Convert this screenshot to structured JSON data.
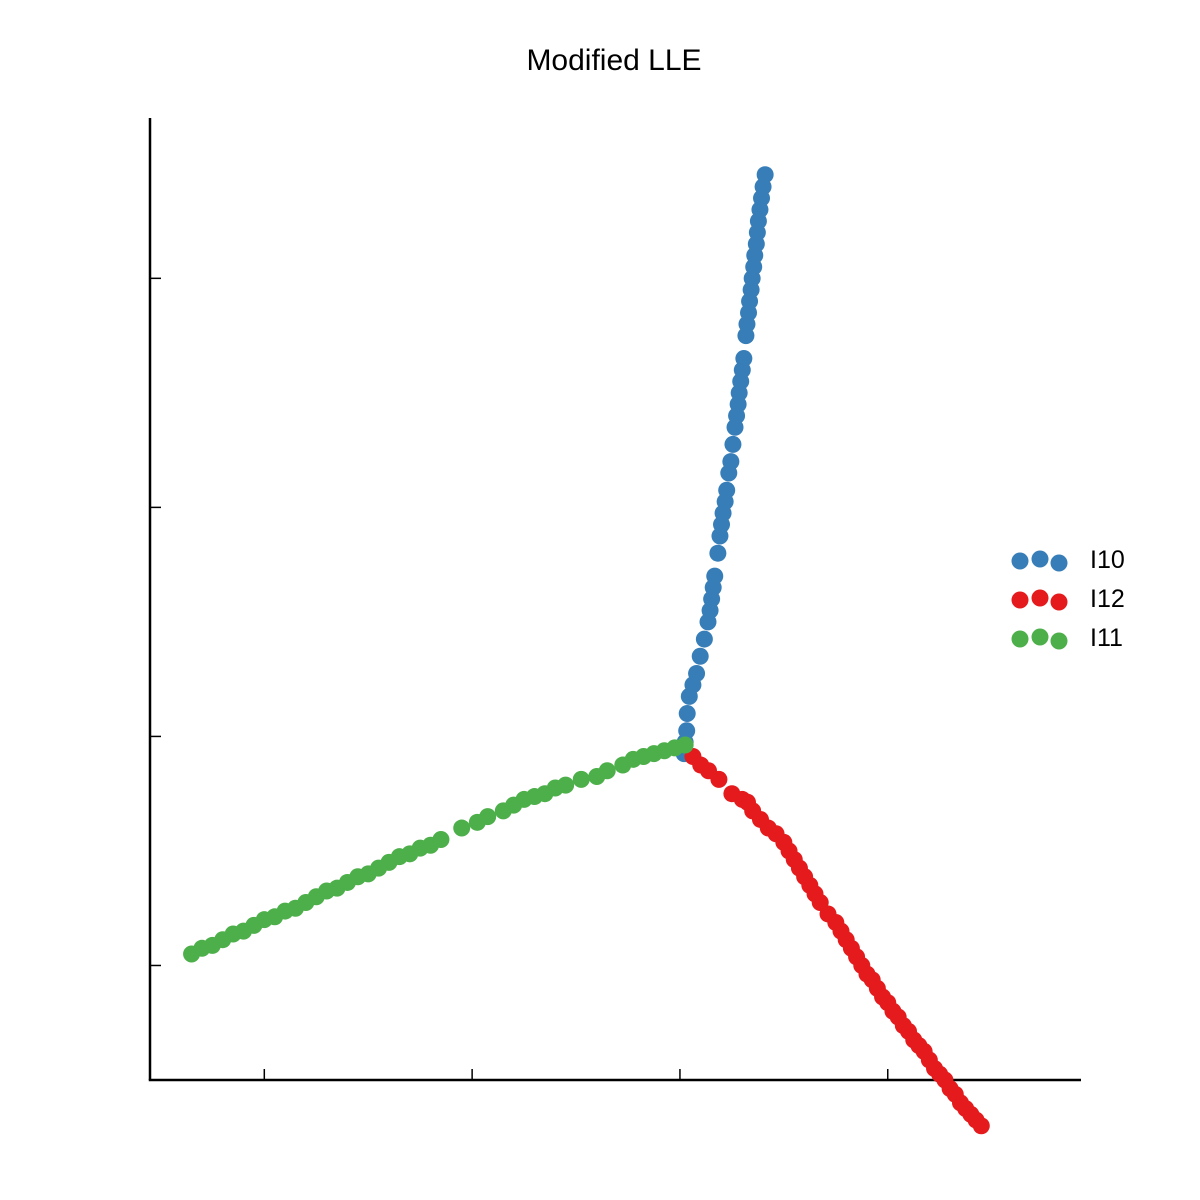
{
  "chart_data": {
    "type": "scatter",
    "title": "Modified LLE",
    "xlabel": "",
    "ylabel": "",
    "xlim": [
      -0.72,
      1.07
    ],
    "ylim": [
      -0.8,
      0.88
    ],
    "xticks": [
      -0.5,
      -0.1,
      0.3,
      0.7
    ],
    "yticks": [
      -0.6,
      -0.2,
      0.2,
      0.6
    ],
    "show_tick_labels": false,
    "grid": false,
    "legend_position": "right",
    "series": [
      {
        "name": "I10",
        "color": "#377eb8",
        "points": [
          [
            0.464,
            0.781
          ],
          [
            0.46,
            0.76
          ],
          [
            0.457,
            0.74
          ],
          [
            0.454,
            0.72
          ],
          [
            0.451,
            0.7
          ],
          [
            0.449,
            0.68
          ],
          [
            0.447,
            0.66
          ],
          [
            0.444,
            0.64
          ],
          [
            0.442,
            0.62
          ],
          [
            0.439,
            0.6
          ],
          [
            0.437,
            0.58
          ],
          [
            0.434,
            0.56
          ],
          [
            0.432,
            0.54
          ],
          [
            0.429,
            0.52
          ],
          [
            0.427,
            0.5
          ],
          [
            0.423,
            0.46
          ],
          [
            0.42,
            0.44
          ],
          [
            0.417,
            0.42
          ],
          [
            0.414,
            0.4
          ],
          [
            0.412,
            0.38
          ],
          [
            0.409,
            0.36
          ],
          [
            0.406,
            0.34
          ],
          [
            0.402,
            0.31
          ],
          [
            0.398,
            0.28
          ],
          [
            0.394,
            0.26
          ],
          [
            0.39,
            0.23
          ],
          [
            0.387,
            0.21
          ],
          [
            0.383,
            0.19
          ],
          [
            0.38,
            0.17
          ],
          [
            0.377,
            0.15
          ],
          [
            0.373,
            0.12
          ],
          [
            0.367,
            0.08
          ],
          [
            0.364,
            0.06
          ],
          [
            0.361,
            0.04
          ],
          [
            0.358,
            0.02
          ],
          [
            0.354,
            0.0
          ],
          [
            0.347,
            -0.03
          ],
          [
            0.339,
            -0.06
          ],
          [
            0.332,
            -0.09
          ],
          [
            0.325,
            -0.11
          ],
          [
            0.318,
            -0.13
          ],
          [
            0.314,
            -0.16
          ],
          [
            0.313,
            -0.19
          ],
          [
            0.31,
            -0.21
          ],
          [
            0.308,
            -0.23
          ]
        ]
      },
      {
        "name": "I12",
        "color": "#e41a1c",
        "points": [
          [
            0.325,
            -0.235
          ],
          [
            0.34,
            -0.25
          ],
          [
            0.355,
            -0.26
          ],
          [
            0.375,
            -0.275
          ],
          [
            0.4,
            -0.3
          ],
          [
            0.42,
            -0.31
          ],
          [
            0.43,
            -0.315
          ],
          [
            0.44,
            -0.33
          ],
          [
            0.455,
            -0.345
          ],
          [
            0.47,
            -0.36
          ],
          [
            0.485,
            -0.37
          ],
          [
            0.5,
            -0.385
          ],
          [
            0.51,
            -0.4
          ],
          [
            0.52,
            -0.415
          ],
          [
            0.53,
            -0.43
          ],
          [
            0.54,
            -0.445
          ],
          [
            0.55,
            -0.46
          ],
          [
            0.56,
            -0.475
          ],
          [
            0.57,
            -0.49
          ],
          [
            0.585,
            -0.51
          ],
          [
            0.6,
            -0.525
          ],
          [
            0.61,
            -0.54
          ],
          [
            0.62,
            -0.555
          ],
          [
            0.63,
            -0.57
          ],
          [
            0.64,
            -0.585
          ],
          [
            0.65,
            -0.6
          ],
          [
            0.66,
            -0.615
          ],
          [
            0.67,
            -0.625
          ],
          [
            0.68,
            -0.64
          ],
          [
            0.69,
            -0.655
          ],
          [
            0.7,
            -0.665
          ],
          [
            0.71,
            -0.68
          ],
          [
            0.72,
            -0.69
          ],
          [
            0.73,
            -0.705
          ],
          [
            0.74,
            -0.715
          ],
          [
            0.75,
            -0.73
          ],
          [
            0.76,
            -0.74
          ],
          [
            0.77,
            -0.75
          ],
          [
            0.78,
            -0.765
          ],
          [
            0.79,
            -0.78
          ],
          [
            0.8,
            -0.79
          ],
          [
            0.81,
            -0.8
          ],
          [
            0.82,
            -0.815
          ],
          [
            0.83,
            -0.825
          ],
          [
            0.84,
            -0.84
          ],
          [
            0.85,
            -0.85
          ],
          [
            0.86,
            -0.86
          ],
          [
            0.87,
            -0.87
          ],
          [
            0.88,
            -0.88
          ]
        ]
      },
      {
        "name": "I11",
        "color": "#4daf4a",
        "points": [
          [
            -0.64,
            -0.58
          ],
          [
            -0.62,
            -0.57
          ],
          [
            -0.6,
            -0.565
          ],
          [
            -0.58,
            -0.555
          ],
          [
            -0.56,
            -0.545
          ],
          [
            -0.54,
            -0.54
          ],
          [
            -0.52,
            -0.53
          ],
          [
            -0.5,
            -0.52
          ],
          [
            -0.48,
            -0.515
          ],
          [
            -0.46,
            -0.505
          ],
          [
            -0.44,
            -0.5
          ],
          [
            -0.42,
            -0.49
          ],
          [
            -0.4,
            -0.48
          ],
          [
            -0.38,
            -0.47
          ],
          [
            -0.36,
            -0.465
          ],
          [
            -0.34,
            -0.455
          ],
          [
            -0.32,
            -0.445
          ],
          [
            -0.3,
            -0.44
          ],
          [
            -0.28,
            -0.43
          ],
          [
            -0.26,
            -0.42
          ],
          [
            -0.24,
            -0.41
          ],
          [
            -0.22,
            -0.405
          ],
          [
            -0.2,
            -0.395
          ],
          [
            -0.18,
            -0.39
          ],
          [
            -0.16,
            -0.38
          ],
          [
            -0.12,
            -0.36
          ],
          [
            -0.09,
            -0.35
          ],
          [
            -0.07,
            -0.34
          ],
          [
            -0.04,
            -0.33
          ],
          [
            -0.02,
            -0.32
          ],
          [
            0.0,
            -0.31
          ],
          [
            0.02,
            -0.305
          ],
          [
            0.04,
            -0.3
          ],
          [
            0.06,
            -0.29
          ],
          [
            0.08,
            -0.285
          ],
          [
            0.11,
            -0.275
          ],
          [
            0.14,
            -0.27
          ],
          [
            0.16,
            -0.26
          ],
          [
            0.19,
            -0.25
          ],
          [
            0.21,
            -0.24
          ],
          [
            0.23,
            -0.235
          ],
          [
            0.25,
            -0.23
          ],
          [
            0.27,
            -0.225
          ],
          [
            0.29,
            -0.22
          ],
          [
            0.31,
            -0.215
          ]
        ]
      }
    ]
  }
}
